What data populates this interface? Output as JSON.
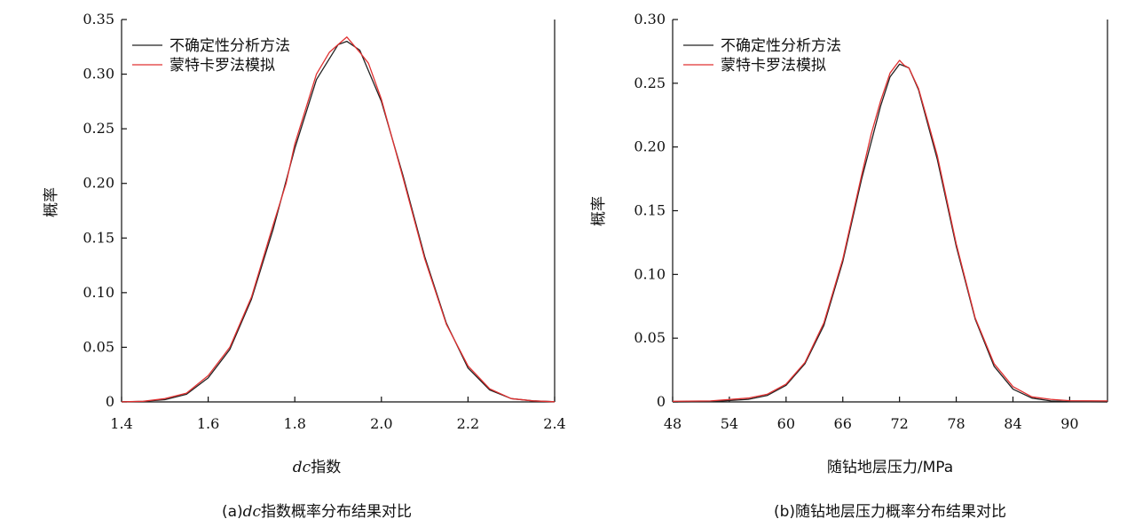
{
  "chart_data": [
    {
      "type": "line",
      "xlabel": "dc指数",
      "xlabel_italic": "dc",
      "xlabel_rest": "指数",
      "ylabel": "概率",
      "caption": "(a) dc指数概率分布结果对比",
      "caption_prefix": "(a)",
      "caption_italic": "dc",
      "caption_rest": "指数概率分布结果对比",
      "xlim": [
        1.4,
        2.4
      ],
      "ylim": [
        0,
        0.35
      ],
      "xticks": [
        "1.4",
        "1.6",
        "1.8",
        "2.0",
        "2.2",
        "2.4"
      ],
      "yticks": [
        "0",
        "0.05",
        "0.10",
        "0.15",
        "0.20",
        "0.25",
        "0.30",
        "0.35"
      ],
      "grid": false,
      "legend_position": "top-left",
      "series": [
        {
          "name": "不确定性分析方法",
          "color": "#222222",
          "x": [
            1.4,
            1.45,
            1.5,
            1.55,
            1.6,
            1.65,
            1.7,
            1.75,
            1.8,
            1.85,
            1.9,
            1.92,
            1.95,
            2.0,
            2.05,
            2.1,
            2.15,
            2.2,
            2.25,
            2.3,
            2.35,
            2.4
          ],
          "y": [
            0.0001,
            0.0005,
            0.002,
            0.007,
            0.022,
            0.048,
            0.094,
            0.158,
            0.232,
            0.295,
            0.327,
            0.33,
            0.322,
            0.275,
            0.207,
            0.133,
            0.072,
            0.031,
            0.011,
            0.003,
            0.001,
            0.0002
          ]
        },
        {
          "name": "蒙特卡罗法模拟",
          "color": "#e03030",
          "x": [
            1.4,
            1.45,
            1.5,
            1.55,
            1.6,
            1.65,
            1.7,
            1.75,
            1.78,
            1.8,
            1.85,
            1.88,
            1.9,
            1.92,
            1.95,
            1.97,
            2.0,
            2.05,
            2.1,
            2.15,
            2.2,
            2.25,
            2.3,
            2.35,
            2.4
          ],
          "y": [
            0.0001,
            0.0006,
            0.003,
            0.008,
            0.024,
            0.05,
            0.096,
            0.162,
            0.2,
            0.236,
            0.3,
            0.32,
            0.327,
            0.334,
            0.32,
            0.31,
            0.277,
            0.205,
            0.131,
            0.071,
            0.033,
            0.012,
            0.003,
            0.001,
            0.0002
          ]
        }
      ]
    },
    {
      "type": "line",
      "xlabel": "随钻地层压力/MPa",
      "ylabel": "概率",
      "caption": "(b) 随钻地层压力概率分布结果对比",
      "caption_prefix": "(b)",
      "caption_rest": "随钻地层压力概率分布结果对比",
      "xlim": [
        48,
        94
      ],
      "ylim": [
        0,
        0.3
      ],
      "xticks": [
        "48",
        "54",
        "60",
        "66",
        "72",
        "78",
        "84",
        "90"
      ],
      "yticks": [
        "0",
        "0.05",
        "0.10",
        "0.15",
        "0.20",
        "0.25",
        "0.30"
      ],
      "grid": false,
      "legend_position": "top-left",
      "series": [
        {
          "name": "不确定性分析方法",
          "color": "#222222",
          "x": [
            48,
            52,
            56,
            58,
            60,
            62,
            64,
            66,
            68,
            70,
            71,
            72,
            73,
            74,
            76,
            78,
            80,
            82,
            84,
            86,
            88,
            90,
            94
          ],
          "y": [
            0,
            0.0002,
            0.002,
            0.005,
            0.013,
            0.03,
            0.06,
            0.11,
            0.175,
            0.232,
            0.255,
            0.265,
            0.262,
            0.245,
            0.19,
            0.122,
            0.065,
            0.028,
            0.01,
            0.003,
            0.0008,
            0.0002,
            0
          ]
        },
        {
          "name": "蒙特卡罗法模拟",
          "color": "#e03030",
          "x": [
            48,
            52,
            56,
            58,
            60,
            62,
            64,
            66,
            68,
            69,
            70,
            71,
            72,
            72.5,
            73,
            74,
            75,
            76,
            78,
            80,
            82,
            84,
            86,
            88,
            90,
            94
          ],
          "y": [
            0.0005,
            0.0008,
            0.003,
            0.006,
            0.014,
            0.031,
            0.062,
            0.112,
            0.178,
            0.21,
            0.236,
            0.258,
            0.268,
            0.264,
            0.262,
            0.246,
            0.22,
            0.193,
            0.124,
            0.066,
            0.03,
            0.012,
            0.004,
            0.002,
            0.001,
            0.0008
          ]
        }
      ]
    }
  ]
}
